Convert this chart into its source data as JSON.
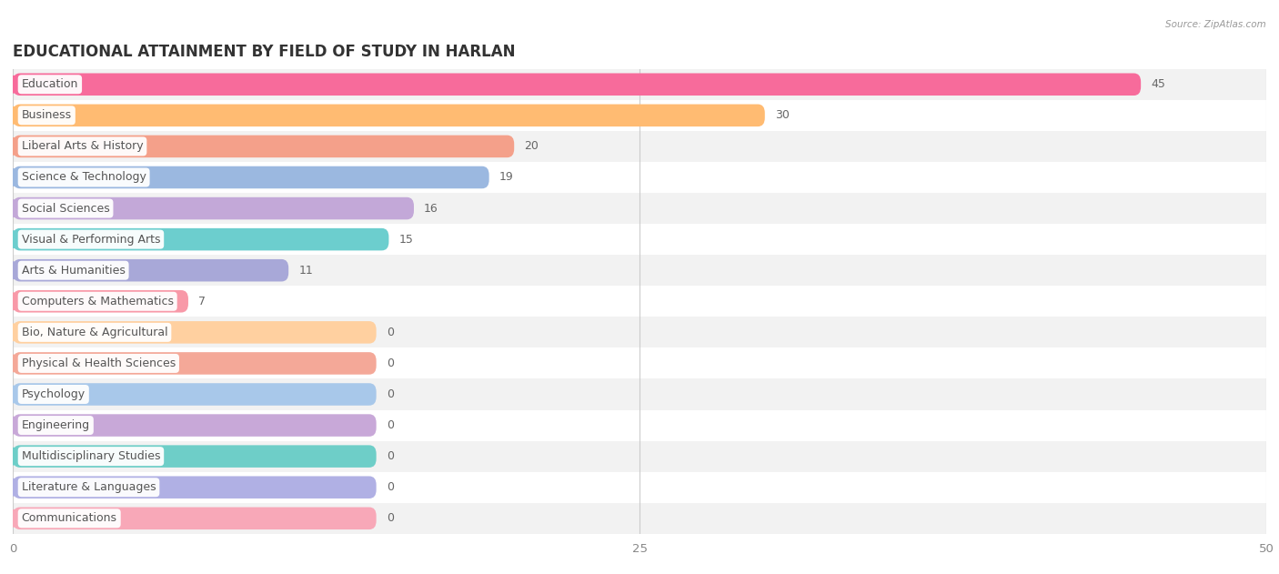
{
  "title": "EDUCATIONAL ATTAINMENT BY FIELD OF STUDY IN HARLAN",
  "source": "Source: ZipAtlas.com",
  "categories": [
    "Education",
    "Business",
    "Liberal Arts & History",
    "Science & Technology",
    "Social Sciences",
    "Visual & Performing Arts",
    "Arts & Humanities",
    "Computers & Mathematics",
    "Bio, Nature & Agricultural",
    "Physical & Health Sciences",
    "Psychology",
    "Engineering",
    "Multidisciplinary Studies",
    "Literature & Languages",
    "Communications"
  ],
  "values": [
    45,
    30,
    20,
    19,
    16,
    15,
    11,
    7,
    0,
    0,
    0,
    0,
    0,
    0,
    0
  ],
  "bar_colors": [
    "#F76B9B",
    "#FFBB72",
    "#F4A08A",
    "#9BB8E0",
    "#C3A8D8",
    "#6CCECE",
    "#A8A8D8",
    "#F899A8",
    "#FFD0A0",
    "#F4A898",
    "#A8C8EA",
    "#C8A8D8",
    "#6ECEC8",
    "#B0B0E4",
    "#F8A8B8"
  ],
  "xlim": [
    0,
    50
  ],
  "xticks": [
    0,
    25,
    50
  ],
  "background_color": "#FFFFFF",
  "row_alt_color": "#F2F2F2",
  "title_fontsize": 12,
  "bar_height": 0.72,
  "label_fontsize": 9,
  "value_fontsize": 9,
  "zero_bar_width": 14.5
}
